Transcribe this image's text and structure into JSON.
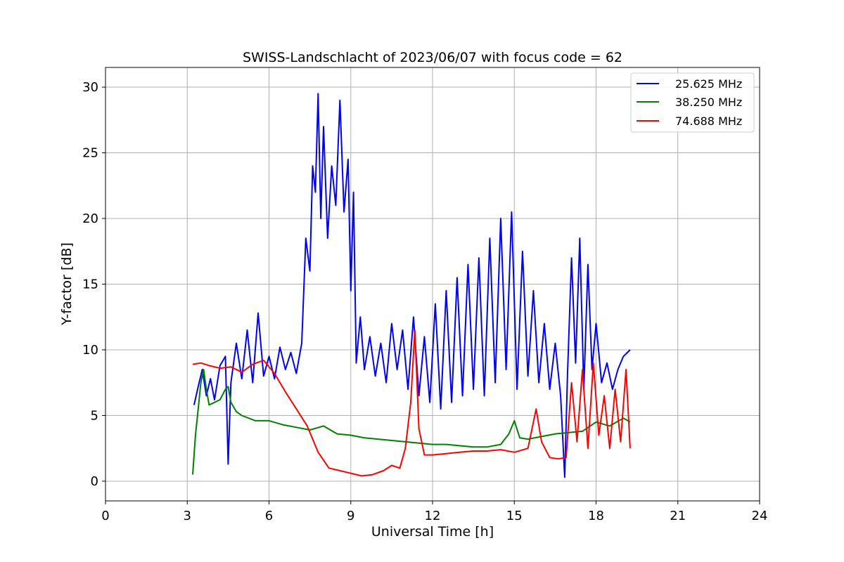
{
  "chart_data": {
    "type": "line",
    "title": "SWISS-Landschlacht of 2023/06/07 with focus code = 62",
    "xlabel": "Universal Time [h]",
    "ylabel": "Y-factor [dB]",
    "xlim": [
      0,
      24
    ],
    "ylim": [
      -1.5,
      31.5
    ],
    "xticks": [
      0,
      3,
      6,
      9,
      12,
      15,
      18,
      21,
      24
    ],
    "yticks": [
      0,
      5,
      10,
      15,
      20,
      25,
      30
    ],
    "grid": true,
    "legend_position": "top-right",
    "series": [
      {
        "name": "25.625 MHz",
        "color": "#0000ff",
        "x": [
          3.25,
          3.4,
          3.55,
          3.7,
          3.85,
          4.0,
          4.2,
          4.4,
          4.5,
          4.6,
          4.8,
          5.0,
          5.2,
          5.4,
          5.6,
          5.8,
          6.0,
          6.2,
          6.4,
          6.6,
          6.8,
          7.0,
          7.2,
          7.35,
          7.5,
          7.6,
          7.7,
          7.8,
          7.9,
          8.0,
          8.15,
          8.3,
          8.45,
          8.6,
          8.75,
          8.9,
          9.0,
          9.1,
          9.2,
          9.35,
          9.5,
          9.7,
          9.9,
          10.1,
          10.3,
          10.5,
          10.7,
          10.9,
          11.1,
          11.3,
          11.5,
          11.7,
          11.9,
          12.1,
          12.3,
          12.5,
          12.7,
          12.9,
          13.1,
          13.3,
          13.5,
          13.7,
          13.9,
          14.1,
          14.3,
          14.5,
          14.7,
          14.9,
          15.1,
          15.3,
          15.5,
          15.7,
          15.9,
          16.1,
          16.3,
          16.5,
          16.7,
          16.85,
          16.95,
          17.1,
          17.25,
          17.4,
          17.55,
          17.7,
          17.85,
          18.0,
          18.2,
          18.4,
          18.6,
          18.8,
          19.0,
          19.25
        ],
        "y": [
          5.8,
          7.2,
          8.5,
          6.5,
          7.8,
          6.2,
          8.8,
          9.5,
          1.3,
          7.5,
          10.5,
          7.8,
          11.5,
          7.5,
          12.8,
          8.0,
          9.5,
          7.8,
          10.2,
          8.5,
          9.8,
          8.2,
          10.5,
          18.5,
          16.0,
          24.0,
          22.0,
          29.5,
          20.0,
          27.0,
          18.5,
          24.0,
          21.0,
          29.0,
          20.5,
          24.5,
          14.5,
          22.0,
          9.0,
          12.5,
          8.5,
          11.0,
          8.0,
          10.5,
          7.5,
          12.0,
          8.5,
          11.5,
          7.0,
          12.5,
          6.5,
          11.0,
          6.0,
          13.5,
          5.5,
          14.5,
          6.0,
          15.5,
          6.5,
          16.5,
          7.0,
          17.0,
          6.5,
          18.5,
          7.5,
          20.0,
          8.5,
          20.5,
          7.0,
          17.5,
          8.0,
          14.5,
          7.5,
          12.0,
          7.0,
          10.5,
          6.5,
          0.3,
          8.0,
          17.0,
          9.0,
          18.5,
          7.0,
          16.5,
          8.5,
          12.0,
          7.5,
          9.0,
          7.0,
          8.5,
          9.5,
          10.0
        ]
      },
      {
        "name": "38.250 MHz",
        "color": "#008000",
        "x": [
          3.2,
          3.3,
          3.4,
          3.5,
          3.6,
          3.7,
          3.8,
          4.0,
          4.2,
          4.4,
          4.5,
          4.6,
          4.8,
          5.0,
          5.5,
          6.0,
          6.5,
          7.0,
          7.5,
          8.0,
          8.5,
          9.0,
          9.5,
          10.0,
          10.5,
          11.0,
          11.5,
          12.0,
          12.5,
          13.0,
          13.5,
          14.0,
          14.5,
          14.8,
          15.0,
          15.2,
          15.5,
          16.0,
          16.5,
          17.0,
          17.5,
          18.0,
          18.5,
          19.0,
          19.25
        ],
        "y": [
          0.5,
          3.5,
          5.5,
          7.5,
          8.5,
          7.0,
          5.8,
          6.0,
          6.2,
          7.0,
          7.2,
          6.0,
          5.3,
          5.0,
          4.6,
          4.6,
          4.3,
          4.1,
          3.9,
          4.2,
          3.6,
          3.5,
          3.3,
          3.2,
          3.1,
          3.0,
          2.9,
          2.8,
          2.8,
          2.7,
          2.6,
          2.6,
          2.8,
          3.6,
          4.6,
          3.3,
          3.2,
          3.4,
          3.6,
          3.7,
          3.8,
          4.5,
          4.2,
          4.8,
          4.5
        ]
      },
      {
        "name": "74.688 MHz",
        "color": "#ff0000",
        "x": [
          3.2,
          3.5,
          3.8,
          4.2,
          4.6,
          5.0,
          5.4,
          5.8,
          6.2,
          6.6,
          7.0,
          7.4,
          7.8,
          8.2,
          8.6,
          9.0,
          9.4,
          9.8,
          10.2,
          10.5,
          10.8,
          11.0,
          11.2,
          11.35,
          11.5,
          11.7,
          12.0,
          12.5,
          13.0,
          13.5,
          14.0,
          14.5,
          15.0,
          15.5,
          15.8,
          16.0,
          16.3,
          16.6,
          16.9,
          17.1,
          17.3,
          17.5,
          17.7,
          17.9,
          18.1,
          18.3,
          18.5,
          18.7,
          18.9,
          19.1,
          19.25
        ],
        "y": [
          8.9,
          9.0,
          8.8,
          8.6,
          8.7,
          8.3,
          8.9,
          9.2,
          8.2,
          6.8,
          5.5,
          4.2,
          2.2,
          1.0,
          0.8,
          0.6,
          0.4,
          0.5,
          0.8,
          1.2,
          1.0,
          2.5,
          6.0,
          11.5,
          4.0,
          2.0,
          2.0,
          2.1,
          2.2,
          2.3,
          2.3,
          2.4,
          2.2,
          2.5,
          5.5,
          3.0,
          1.8,
          1.7,
          1.8,
          7.5,
          3.0,
          8.5,
          2.5,
          9.0,
          3.5,
          6.5,
          2.5,
          7.0,
          3.0,
          8.5,
          2.5
        ]
      }
    ]
  }
}
